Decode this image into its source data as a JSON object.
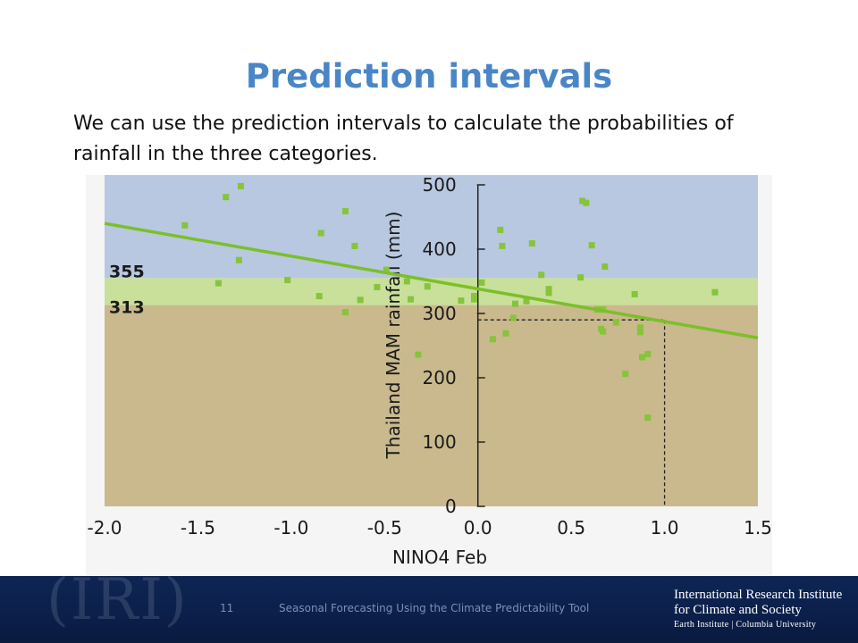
{
  "slide": {
    "title": "Prediction intervals",
    "subtitle": "We can use the prediction intervals to calculate the probabilities of rainfall in the three categories."
  },
  "footer": {
    "page_number": "11",
    "text": "Seasonal Forecasting Using the Climate Predictability Tool",
    "institution_name": "International Research Institute for Climate and Society",
    "institution_sub": "Earth Institute | Columbia University",
    "logo_text": "(IRI)"
  },
  "colors": {
    "title": "#4a86c7",
    "above_normal_band": "#b8c8e0",
    "normal_band": "#c8e09a",
    "below_normal_band": "#c9b98d",
    "points": "#86c43a",
    "regression_line": "#7cbf2a",
    "footer_bg": "#0b1f4a"
  },
  "chart_data": {
    "type": "scatter",
    "xlabel": "NINO4 Feb",
    "ylabel": "Thailand MAM rainfall (mm)",
    "xlim": [
      -2.0,
      1.5
    ],
    "ylim": [
      0,
      500
    ],
    "x_ticks": [
      "-2.0",
      "-1.5",
      "-1.0",
      "-0.5",
      "0.0",
      "0.5",
      "1.0",
      "1.5"
    ],
    "y_ticks": [
      "0",
      "100",
      "200",
      "300",
      "400",
      "500"
    ],
    "tercile_thresholds": {
      "upper": 355,
      "lower": 313,
      "upper_label": "355",
      "lower_label": "313"
    },
    "regression_line": {
      "x": [
        -2.0,
        1.5
      ],
      "y": [
        440,
        262
      ]
    },
    "forecast": {
      "x": 1.0,
      "y": 290
    },
    "points": [
      {
        "x": -1.57,
        "y": 437
      },
      {
        "x": -1.35,
        "y": 481
      },
      {
        "x": -1.27,
        "y": 498
      },
      {
        "x": -1.28,
        "y": 383
      },
      {
        "x": -1.39,
        "y": 347
      },
      {
        "x": -1.02,
        "y": 352
      },
      {
        "x": -0.85,
        "y": 327
      },
      {
        "x": -0.84,
        "y": 425
      },
      {
        "x": -0.71,
        "y": 459
      },
      {
        "x": -0.71,
        "y": 302
      },
      {
        "x": -0.66,
        "y": 405
      },
      {
        "x": -0.63,
        "y": 321
      },
      {
        "x": -0.54,
        "y": 341
      },
      {
        "x": -0.49,
        "y": 368
      },
      {
        "x": -0.38,
        "y": 350
      },
      {
        "x": -0.36,
        "y": 322
      },
      {
        "x": -0.32,
        "y": 236
      },
      {
        "x": -0.27,
        "y": 342
      },
      {
        "x": -0.09,
        "y": 320
      },
      {
        "x": -0.02,
        "y": 327
      },
      {
        "x": -0.02,
        "y": 322
      },
      {
        "x": 0.02,
        "y": 348
      },
      {
        "x": 0.08,
        "y": 260
      },
      {
        "x": 0.12,
        "y": 430
      },
      {
        "x": 0.13,
        "y": 405
      },
      {
        "x": 0.15,
        "y": 269
      },
      {
        "x": 0.19,
        "y": 293
      },
      {
        "x": 0.2,
        "y": 315
      },
      {
        "x": 0.26,
        "y": 319
      },
      {
        "x": 0.29,
        "y": 409
      },
      {
        "x": 0.34,
        "y": 360
      },
      {
        "x": 0.38,
        "y": 338
      },
      {
        "x": 0.38,
        "y": 332
      },
      {
        "x": 0.56,
        "y": 475
      },
      {
        "x": 0.58,
        "y": 472
      },
      {
        "x": 0.55,
        "y": 356
      },
      {
        "x": 0.61,
        "y": 406
      },
      {
        "x": 0.64,
        "y": 306
      },
      {
        "x": 0.66,
        "y": 276
      },
      {
        "x": 0.67,
        "y": 272
      },
      {
        "x": 0.68,
        "y": 373
      },
      {
        "x": 0.67,
        "y": 306
      },
      {
        "x": 0.74,
        "y": 286
      },
      {
        "x": 0.79,
        "y": 206
      },
      {
        "x": 0.84,
        "y": 330
      },
      {
        "x": 0.87,
        "y": 278
      },
      {
        "x": 0.87,
        "y": 271
      },
      {
        "x": 0.88,
        "y": 232
      },
      {
        "x": 0.91,
        "y": 237
      },
      {
        "x": 0.91,
        "y": 138
      },
      {
        "x": 1.27,
        "y": 333
      }
    ]
  }
}
